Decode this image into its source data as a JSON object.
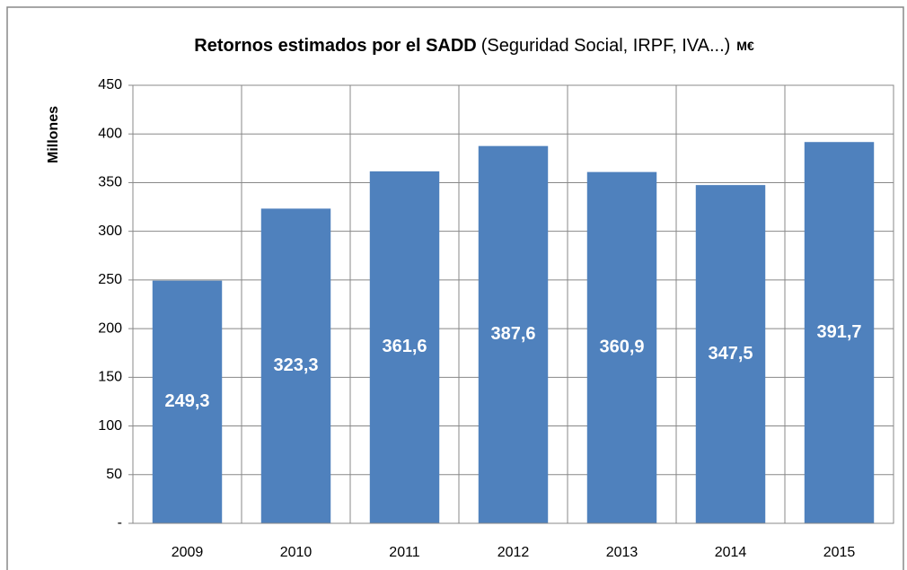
{
  "chart_data": {
    "type": "bar",
    "title": "Retornos estimados por el SADD",
    "subtitle": "(Seguridad Social, IRPF, IVA...)",
    "unit": "M€",
    "y_label": "Millones",
    "categories": [
      "2009",
      "2010",
      "2011",
      "2012",
      "2013",
      "2014",
      "2015"
    ],
    "values": [
      249.3,
      323.3,
      361.6,
      387.6,
      360.9,
      347.5,
      391.7
    ],
    "value_labels": [
      "249,3",
      "323,3",
      "361,6",
      "387,6",
      "360,9",
      "347,5",
      "391,7"
    ],
    "color": "#4f81bd",
    "ylim": [
      0,
      450
    ],
    "yticks": [
      {
        "value": 0,
        "label": "-"
      },
      50,
      100,
      150,
      200,
      250,
      300,
      350,
      400,
      450
    ],
    "grid": true
  }
}
